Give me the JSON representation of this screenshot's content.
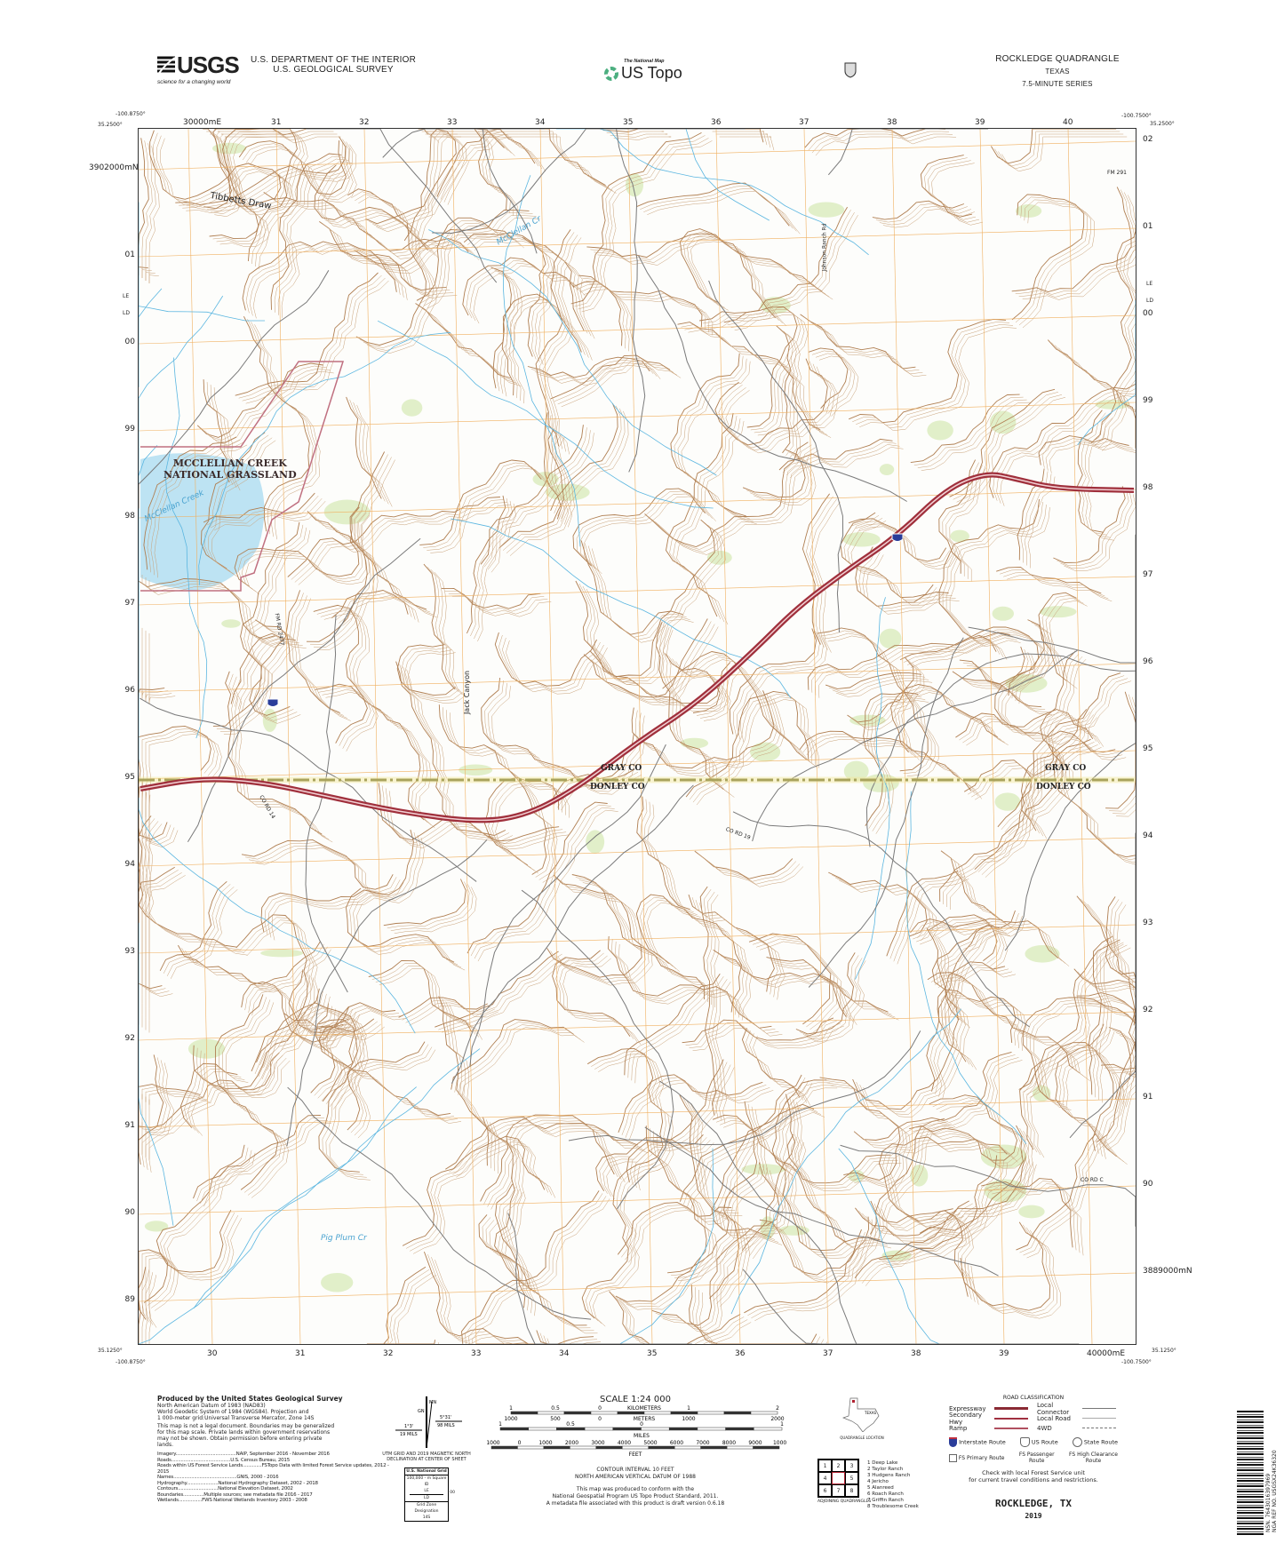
{
  "header": {
    "usgs_logo": "USGS",
    "usgs_tagline": "science for a changing world",
    "dept_line1": "U.S. DEPARTMENT OF THE INTERIOR",
    "dept_line2": "U.S. GEOLOGICAL SURVEY",
    "national_map": "The National Map",
    "us_topo": "US Topo",
    "shield_text": "U S",
    "quad_title": "ROCKLEDGE QUADRANGLE",
    "state": "TEXAS",
    "series": "7.5-MINUTE SERIES"
  },
  "corners": {
    "nw_lon": "-100.8750°",
    "nw_lat": "35.2500°",
    "ne_lon": "-100.7500°",
    "ne_lat": "35.2500°",
    "sw_lon": "-100.8750°",
    "sw_lat": "35.1250°",
    "se_lon": "-100.7500°",
    "se_lat": "35.1250°"
  },
  "grid": {
    "top_eastings": [
      "30000mE",
      "31",
      "32",
      "33",
      "34",
      "35",
      "36",
      "37",
      "38",
      "39",
      "40"
    ],
    "bottom_eastings": [
      "30",
      "31",
      "32",
      "33",
      "34",
      "35",
      "36",
      "37",
      "38",
      "39",
      "40000mE"
    ],
    "left_northings": [
      "3902000mN",
      "01",
      "00",
      "99",
      "98",
      "97",
      "96",
      "95",
      "94",
      "93",
      "92",
      "91",
      "90",
      "89"
    ],
    "right_northings": [
      "02",
      "01",
      "00",
      "99",
      "98",
      "97",
      "96",
      "95",
      "94",
      "93",
      "92",
      "91",
      "90",
      "3889000mN"
    ],
    "gzd_left": [
      "LE",
      "LD"
    ],
    "gzd_right": [
      "LE",
      "LD"
    ]
  },
  "map_labels": {
    "grassland": [
      "MCCLELLAN CREEK",
      "NATIONAL GRASSLAND"
    ],
    "creek_mcclellan": "McClellan Creek",
    "creek_mcclellan_cr": "McClellan Cr",
    "tibbetts": "Tibbetts Draw",
    "jack_canyon": "Jack Canyon",
    "pig_plum": "Pig Plum Cr",
    "county_north": "GRAY CO",
    "county_south": "DONLEY CO",
    "fm291": "FM 291",
    "fm2477": "FM RD 2477",
    "johnson": "Johnson Ranch Rd",
    "co14": "CO RD 14",
    "co19": "CO RD 19",
    "coc": "CO RD C",
    "interstate": "40"
  },
  "colors": {
    "contour": "#c9a27a",
    "index_contour": "#b07f52",
    "water": "#a6d8ef",
    "stream": "#5bb6e0",
    "road": "#7a7a7a",
    "interstate": "#a0303c",
    "grid": "#f0b060",
    "county": "#6b6b2a",
    "vegetation": "#cfe6a8"
  },
  "footer": {
    "produced": "Produced by the United States Geological Survey",
    "datum": [
      "North American Datum of 1983 (NAD83)",
      "World Geodetic System of 1984 (WGS84). Projection and",
      "1 000-meter grid:Universal Transverse Mercator, Zone 14S"
    ],
    "legal": "This map is not a legal document. Boundaries may be generalized for this map scale. Private lands within government reservations may not be shown. Obtain permission before entering private lands.",
    "sources": [
      "Imagery............................................NAIP, September 2016 - November 2016",
      "Roads...........................................U.S. Census Bureau, 2015",
      "Roads within US Forest Service Lands..............FSTopo Data with limited Forest Service updates, 2012 - 2015",
      "Names..............................................GNIS, 2000 - 2016",
      "Hydrography.......................National Hydrography Dataset, 2002 - 2018",
      "Contours.............................National Elevation Dataset, 2002",
      "Boundaries...............Multiple sources; see metadata file 2016 - 2017",
      "Wetlands.................FWS National Wetlands Inventory 2003 - 2008"
    ],
    "declination": {
      "mn": "MN",
      "gn": "GN",
      "a1": "5°31'",
      "a1m": "98 MILS",
      "a2": "1°3'",
      "a2m": "19 MILS",
      "caption": "UTM GRID AND 2019 MAGNETIC NORTH DECLINATION AT CENTER OF SHEET"
    },
    "grid_box": {
      "title": "U.S. National Grid",
      "sub": "100,000 - m Square ID",
      "top": "LE",
      "bottom": "LD",
      "num": "00",
      "gzd_label": "Grid Zone Designation",
      "gzd": "14S"
    },
    "scale": {
      "title": "SCALE 1:24 000",
      "km_ticks": [
        "1",
        "0.5",
        "0",
        "1",
        "2"
      ],
      "km": "KILOMETERS",
      "m_ticks": [
        "1000",
        "500",
        "0",
        "1000",
        "2000"
      ],
      "m": "METERS",
      "mi_ticks": [
        "1",
        "0.5",
        "0",
        "1"
      ],
      "mi": "MILES",
      "ft_ticks": [
        "1000",
        "0",
        "1000",
        "2000",
        "3000",
        "4000",
        "5000",
        "6000",
        "7000",
        "8000",
        "9000",
        "10000"
      ],
      "ft": "FEET"
    },
    "contour": [
      "CONTOUR INTERVAL 10 FEET",
      "NORTH AMERICAN VERTICAL DATUM OF 1988"
    ],
    "conform": [
      "This map was produced to conform with the",
      "National Geospatial Program US Topo Product Standard, 2011.",
      "A metadata file associated with this product is draft version 0.6.18"
    ],
    "location": {
      "state": "TEXAS",
      "caption": "QUADRANGLE LOCATION"
    },
    "adjoining": {
      "caption": "ADJOINING QUADRANGLES",
      "cells": [
        "1",
        "2",
        "3",
        "4",
        "",
        "5",
        "6",
        "7",
        "8"
      ],
      "names": [
        "1 Deep Lake",
        "2 Taylor Ranch",
        "3 Hudgens Ranch",
        "4 Jericho",
        "5 Alanreed",
        "6 Roach Ranch",
        "7 Griffin Ranch",
        "8 Troublesome Creek"
      ]
    },
    "roads": {
      "title": "ROAD CLASSIFICATION",
      "expressway": "Expressway",
      "secondary": "Secondary Hwy",
      "ramp": "Ramp",
      "local_connector": "Local Connector",
      "local_road": "Local Road",
      "fourwd": "4WD",
      "interstate": "Interstate Route",
      "us": "US Route",
      "state": "State Route",
      "fs_primary": "FS Primary Route",
      "fs_passenger": "FS Passenger Route",
      "fs_high": "FS High Clearance Route",
      "check": [
        "Check with local Forest Service unit",
        "for current travel conditions and restrictions."
      ]
    },
    "name": "ROCKLEDGE, TX",
    "year": "2019",
    "barcode": [
      "NSN. 7643016397969",
      "NGA REF NO. USGSX24K36320"
    ]
  }
}
